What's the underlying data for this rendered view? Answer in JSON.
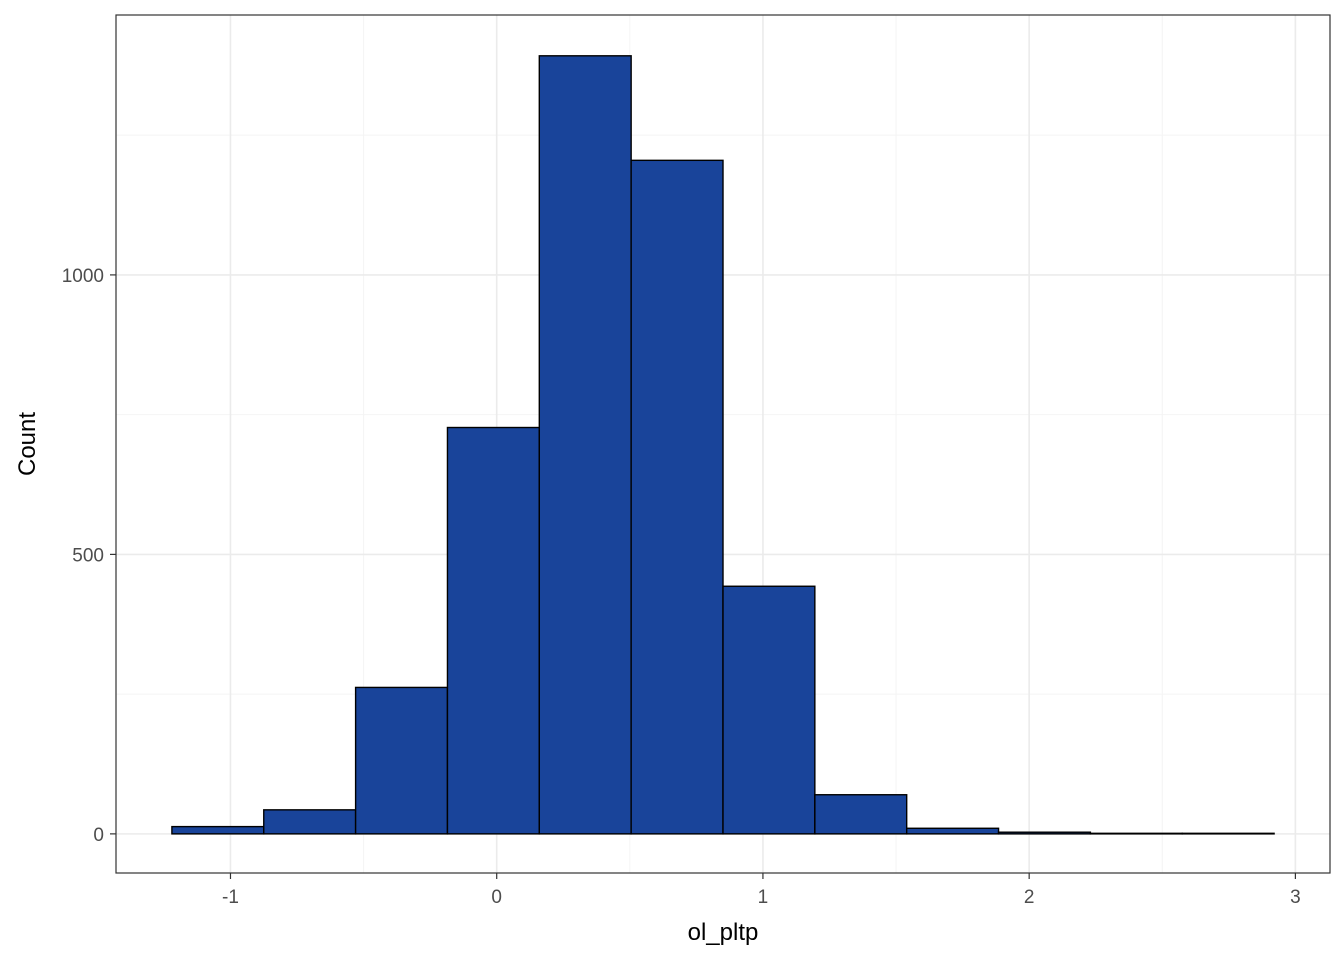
{
  "chart_data": {
    "type": "bar",
    "subtype": "histogram",
    "title": "",
    "xlabel": "ol_pltp",
    "ylabel": "Count",
    "bin_edges": [
      -1.22,
      -0.875,
      -0.53,
      -0.185,
      0.16,
      0.505,
      0.85,
      1.195,
      1.54,
      1.885,
      2.23,
      2.575,
      2.92
    ],
    "values": [
      13,
      43,
      262,
      727,
      1392,
      1205,
      443,
      70,
      10,
      3,
      1,
      1
    ],
    "xlim": [
      -1.43,
      3.13
    ],
    "ylim": [
      -70,
      1465
    ],
    "x_ticks": [
      {
        "value": -1,
        "label": "-1"
      },
      {
        "value": 0,
        "label": "0"
      },
      {
        "value": 1,
        "label": "1"
      },
      {
        "value": 2,
        "label": "2"
      },
      {
        "value": 3,
        "label": "3"
      }
    ],
    "y_ticks": [
      {
        "value": 0,
        "label": "0"
      },
      {
        "value": 500,
        "label": "500"
      },
      {
        "value": 1000,
        "label": "1000"
      }
    ],
    "x_minor_gridlines": [
      -0.5,
      0.5,
      1.5,
      2.5
    ],
    "y_minor_gridlines": [
      250,
      750,
      1250
    ],
    "grid": true,
    "legend": "none",
    "colors": {
      "bar_fill": "#19449A",
      "bar_stroke": "#000000",
      "panel_background": "#FFFFFF",
      "panel_border": "#333333",
      "major_grid": "#EBEBEB",
      "minor_grid": "#F4F4F4",
      "tick_label": "#4D4D4D",
      "axis_title": "#000000"
    }
  }
}
